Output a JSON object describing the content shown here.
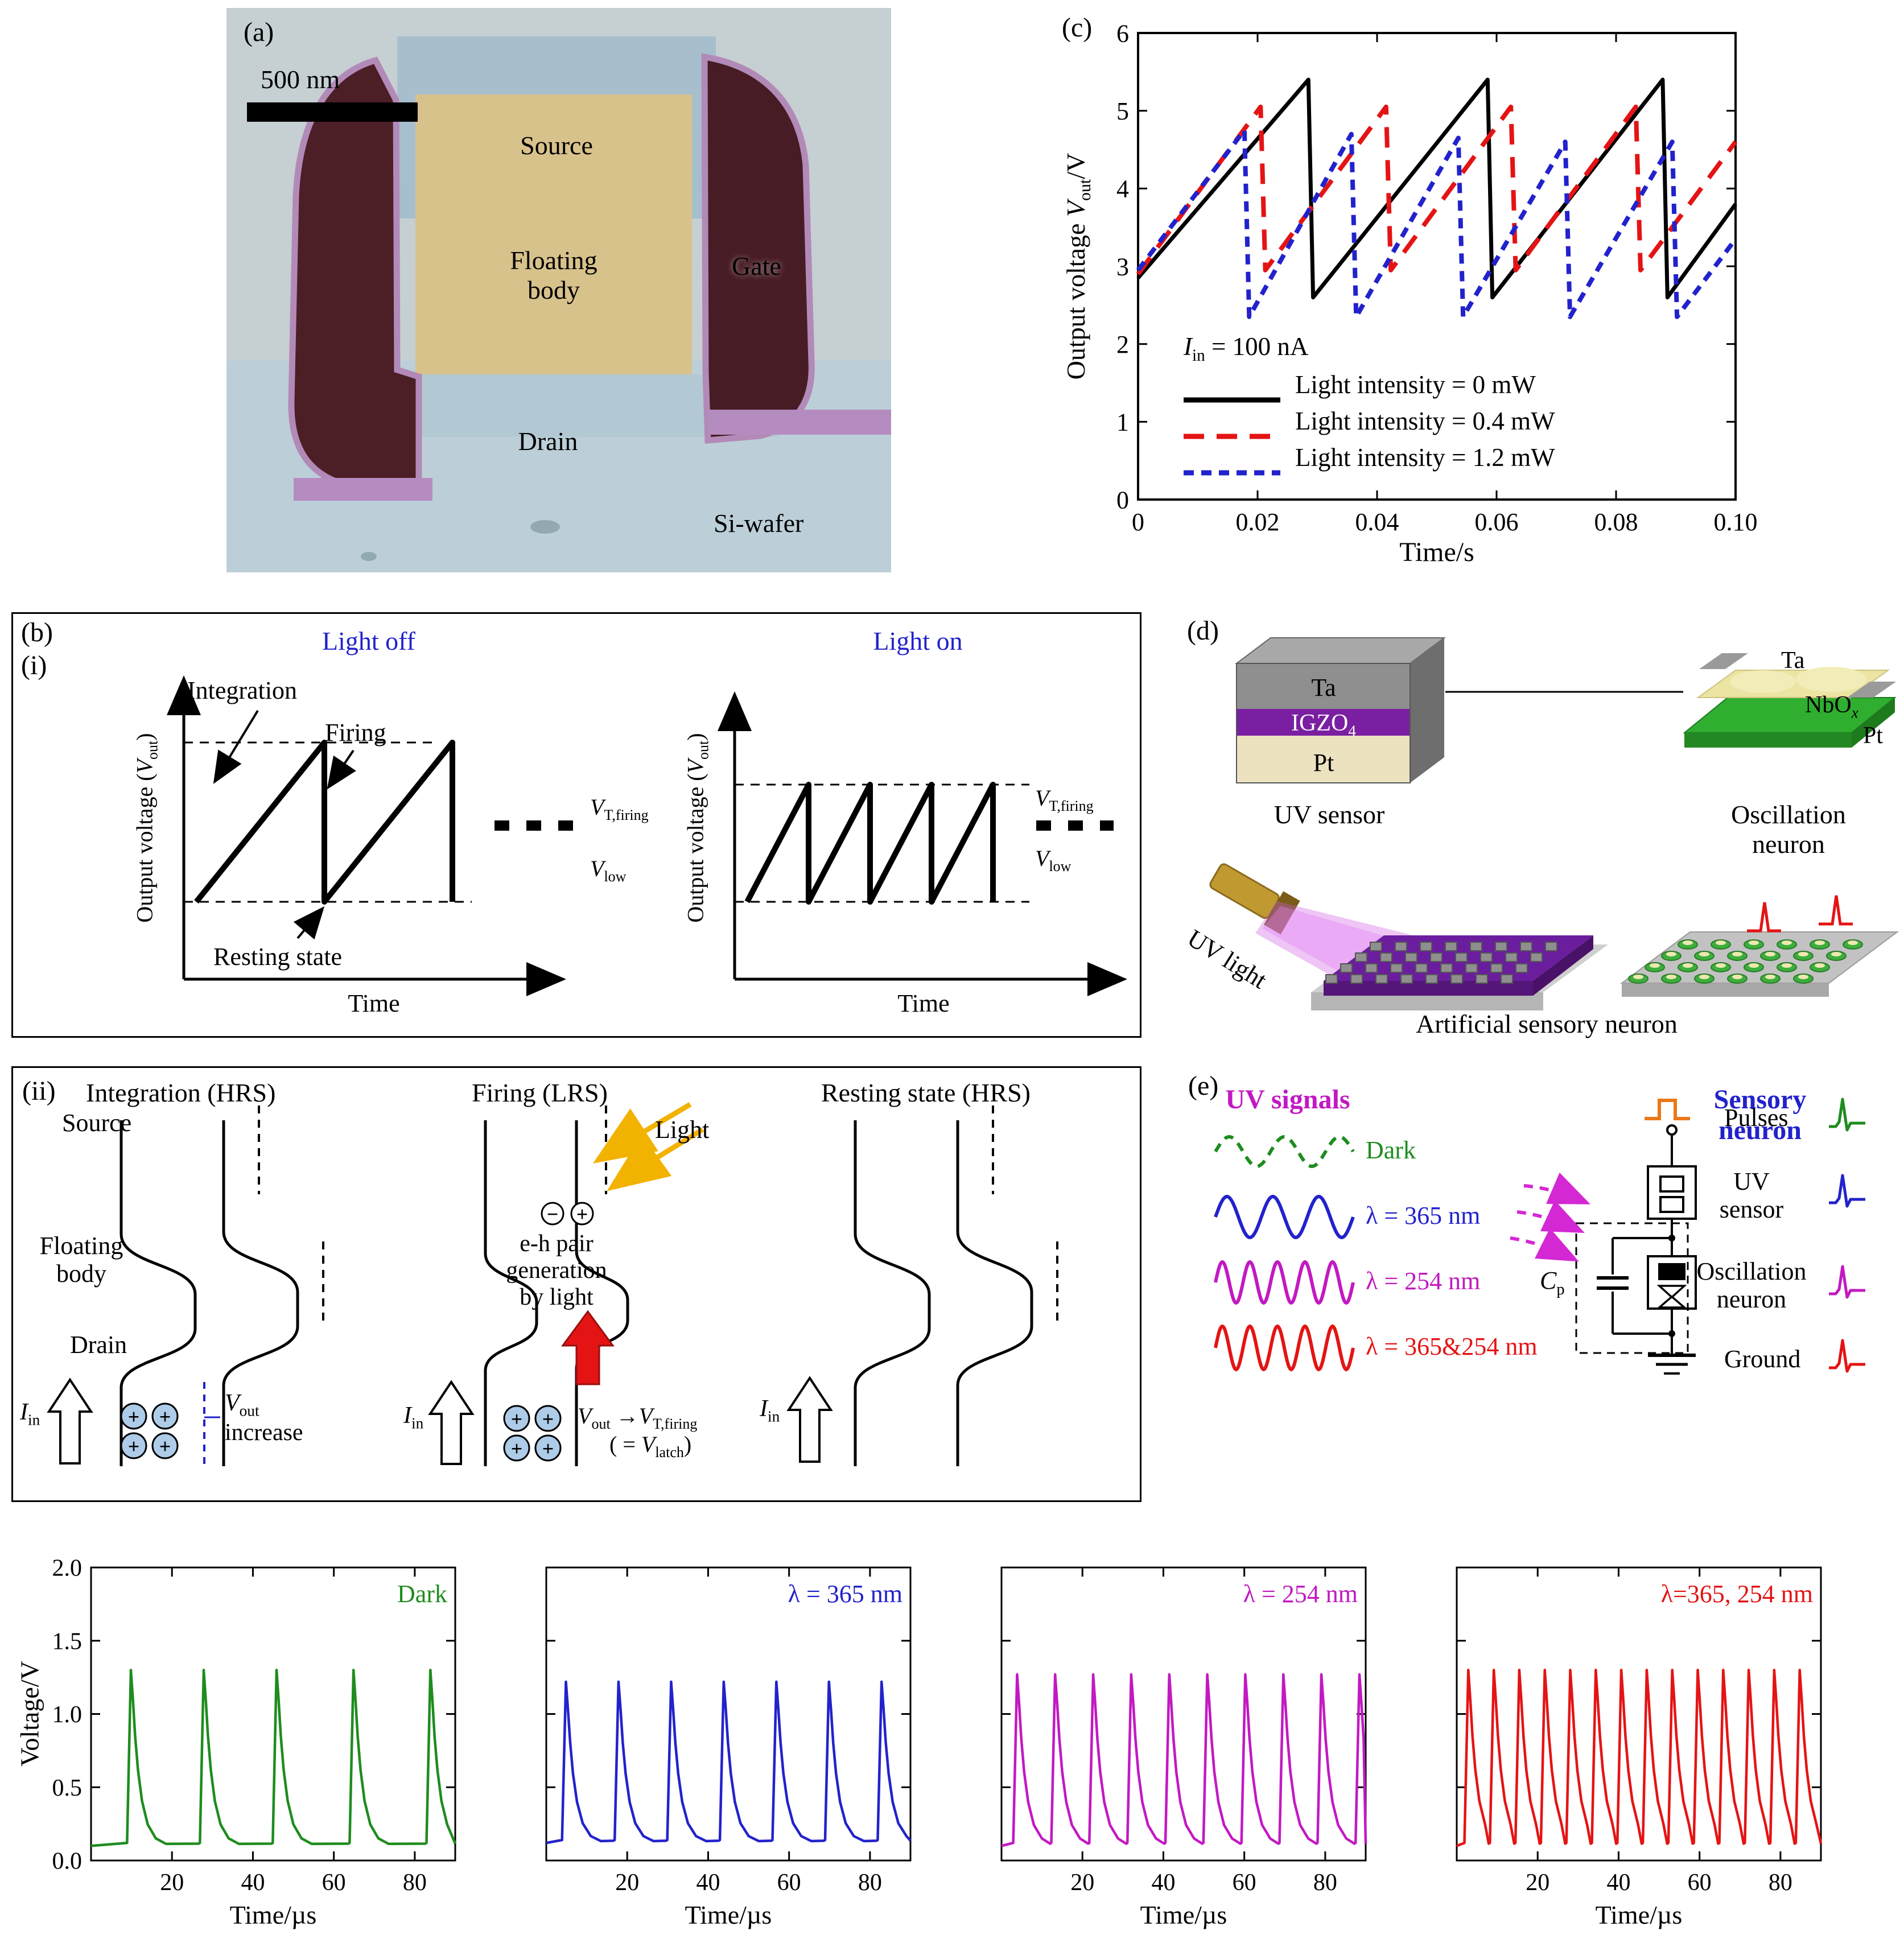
{
  "colors": {
    "black": "#000000",
    "red": "#e41414",
    "blue": "#2222cc",
    "green": "#1e8c1e",
    "magenta": "#c219c2",
    "orange": "#e87818",
    "gate_maroon": "#4c1e26",
    "body_tan": "#d8c28c",
    "igzo_purple": "#7b1fa2",
    "beam_purple": "#cf5ae1"
  },
  "a": {
    "label": "(a)",
    "scale_bar": "500 nm",
    "source": "Source",
    "floating_body": "Floating\nbody",
    "gate": "Gate",
    "drain": "Drain",
    "si_wafer": "Si-wafer"
  },
  "c": {
    "label": "(c)",
    "ylabel_prefix": "Output voltage ",
    "ylabel_suffix": "/V",
    "annotation_suffix": " = 100 nA"
  },
  "b": {
    "label": "(b)",
    "sub": "(i)",
    "left_title": "Light off",
    "right_title": "Light on",
    "ylabel_prefix": "Output voltage (",
    "ylabel_suffix": ")",
    "xlabel": "Time",
    "integration": "Integration",
    "firing": "Firing",
    "resting": "Resting state"
  },
  "ii": {
    "label": "(ii)",
    "t1": "Integration (HRS)",
    "t2": "Firing (LRS)",
    "t3": "Resting state (HRS)",
    "source": "Source",
    "floating_body": "Floating\nbody",
    "drain": "Drain",
    "increase": "increase",
    "light": "Light",
    "eh": "e-h pair\ngeneration\nby light",
    "plus": "+",
    "minus": "−",
    "arrow": "→",
    "latch_open": "( = ",
    "latch_close": ")"
  },
  "d": {
    "label": "(d)",
    "ta": "Ta",
    "igzo_main": "IGZO",
    "igzo_sub": "4",
    "pt": "Pt",
    "uv_sensor": "UV sensor",
    "ta2": "Ta",
    "nbo_main": "NbO",
    "nbo_sub": "x",
    "pt2": "Pt",
    "oscillation_neuron": "Oscillation neuron",
    "uv_light": "UV light",
    "artificial": "Artificial sensory neuron"
  },
  "e": {
    "label": "(e)",
    "uv_signals": "UV signals",
    "sensory": "Sensory neuron",
    "pulses": "Pulses",
    "uv_sensor": "UV\nsensor",
    "osc": "Oscillation\nneuron",
    "ground": "Ground",
    "waves": [
      {
        "label": "Dark",
        "color": "#1e8c1e",
        "dashed": true,
        "cycles": 2.5
      },
      {
        "label": "λ = 365 nm",
        "color": "#2222cc",
        "dashed": false,
        "cycles": 3
      },
      {
        "label": "λ = 254 nm",
        "color": "#c219c2",
        "dashed": false,
        "cycles": 5
      },
      {
        "label": "λ = 365&254 nm",
        "color": "#e41414",
        "dashed": false,
        "cycles": 5
      }
    ]
  },
  "sub_labels": {
    "vout": [
      "V",
      "out"
    ],
    "vt": [
      "V",
      "T,firing"
    ],
    "vlow": [
      "V",
      "low"
    ],
    "iin": [
      "I",
      "in"
    ],
    "cp": [
      "C",
      "p"
    ],
    "vlatch": [
      "V",
      "latch"
    ]
  },
  "chart_data": [
    {
      "id": "c",
      "type": "line",
      "xlabel": "Time/s",
      "ylabel": "Output voltage Vout/V",
      "xlim": [
        0,
        0.1
      ],
      "ylim": [
        0,
        6
      ],
      "xticks": [
        "0",
        "0.02",
        "0.04",
        "0.06",
        "0.08",
        "0.10"
      ],
      "xtick_vals": [
        0,
        0.02,
        0.04,
        0.06,
        0.08,
        0.1
      ],
      "yticks": [
        "0",
        "1",
        "2",
        "3",
        "4",
        "5",
        "6"
      ],
      "ytick_vals": [
        0,
        1,
        2,
        3,
        4,
        5,
        6
      ],
      "annotation": "Iin = 100 nA",
      "legend": [
        {
          "label": "Light intensity = 0 mW",
          "color": "#000000",
          "dash": ""
        },
        {
          "label": "Light intensity = 0.4 mW",
          "color": "#e41414",
          "dash": "36 22"
        },
        {
          "label": "Light intensity = 1.2 mW",
          "color": "#2222cc",
          "dash": "18 13"
        }
      ],
      "series": [
        {
          "name": "0 mW",
          "color": "#000000",
          "dash": "",
          "width": 7,
          "points": [
            [
              0,
              2.85
            ],
            [
              0.0285,
              5.4
            ],
            [
              0.0293,
              2.6
            ],
            [
              0.0585,
              5.4
            ],
            [
              0.0593,
              2.6
            ],
            [
              0.0878,
              5.4
            ],
            [
              0.0886,
              2.6
            ],
            [
              0.1,
              3.8
            ]
          ]
        },
        {
          "name": "0.4 mW",
          "color": "#e41414",
          "dash": "36 22",
          "width": 8,
          "points": [
            [
              0,
              2.9
            ],
            [
              0.0205,
              5.05
            ],
            [
              0.0213,
              2.95
            ],
            [
              0.0415,
              5.05
            ],
            [
              0.0423,
              2.95
            ],
            [
              0.0624,
              5.05
            ],
            [
              0.0632,
              2.95
            ],
            [
              0.0833,
              5.05
            ],
            [
              0.0841,
              2.95
            ],
            [
              0.1,
              4.6
            ]
          ]
        },
        {
          "name": "1.2 mW",
          "color": "#2222cc",
          "dash": "18 13",
          "width": 8,
          "points": [
            [
              0,
              2.95
            ],
            [
              0.0178,
              4.75
            ],
            [
              0.0186,
              2.35
            ],
            [
              0.0357,
              4.7
            ],
            [
              0.0365,
              2.35
            ],
            [
              0.0536,
              4.65
            ],
            [
              0.0544,
              2.35
            ],
            [
              0.0715,
              4.6
            ],
            [
              0.0723,
              2.35
            ],
            [
              0.0894,
              4.6
            ],
            [
              0.0902,
              2.35
            ],
            [
              0.1,
              3.35
            ]
          ]
        }
      ]
    },
    {
      "id": "f1",
      "type": "line",
      "title": "Dark",
      "color": "#1e8c1e",
      "xlabel": "Time/µs",
      "ylabel": "Voltage/V",
      "xlim": [
        0,
        90
      ],
      "ylim": [
        0,
        2
      ],
      "xticks": [
        "20",
        "40",
        "60",
        "80"
      ],
      "xtick_vals": [
        20,
        40,
        60,
        80
      ],
      "yticks": [
        "0.0",
        "0.5",
        "1.0",
        "1.5",
        "2.0"
      ],
      "ytick_vals": [
        0,
        0.5,
        1,
        1.5,
        2
      ],
      "baseline": 0.1,
      "peak": 1.3,
      "spike_times": [
        10,
        28,
        46,
        65,
        84
      ]
    },
    {
      "id": "f2",
      "type": "line",
      "title": "λ = 365 nm",
      "color": "#2222cc",
      "xlabel": "Time/µs",
      "ylabel": "Voltage/V",
      "xlim": [
        0,
        90
      ],
      "ylim": [
        0,
        2
      ],
      "xticks": [
        "20",
        "40",
        "60",
        "80"
      ],
      "xtick_vals": [
        20,
        40,
        60,
        80
      ],
      "yticks": [
        "0.0",
        "0.5",
        "1.0",
        "1.5",
        "2.0"
      ],
      "ytick_vals": [
        0,
        0.5,
        1,
        1.5,
        2
      ],
      "baseline": 0.12,
      "peak": 1.22,
      "spike_times": [
        5,
        18,
        31,
        44,
        57,
        70,
        83
      ]
    },
    {
      "id": "f3",
      "type": "line",
      "title": "λ = 254 nm",
      "color": "#c219c2",
      "xlabel": "Time/µs",
      "ylabel": "Voltage/V",
      "xlim": [
        0,
        90
      ],
      "ylim": [
        0,
        2
      ],
      "xticks": [
        "20",
        "40",
        "60",
        "80"
      ],
      "xtick_vals": [
        20,
        40,
        60,
        80
      ],
      "yticks": [
        "0.0",
        "0.5",
        "1.0",
        "1.5",
        "2.0"
      ],
      "ytick_vals": [
        0,
        0.5,
        1,
        1.5,
        2
      ],
      "baseline": 0.1,
      "peak": 1.27,
      "spike_times": [
        4,
        13.4,
        22.8,
        32.2,
        41.6,
        51,
        60.4,
        69.8,
        79.2,
        88.6
      ]
    },
    {
      "id": "f4",
      "type": "line",
      "title": "λ=365, 254 nm",
      "color": "#e41414",
      "xlabel": "Time/µs",
      "ylabel": "Voltage/V",
      "xlim": [
        0,
        90
      ],
      "ylim": [
        0,
        2
      ],
      "xticks": [
        "20",
        "40",
        "60",
        "80"
      ],
      "xtick_vals": [
        20,
        40,
        60,
        80
      ],
      "yticks": [
        "0.0",
        "0.5",
        "1.0",
        "1.5",
        "2.0"
      ],
      "ytick_vals": [
        0,
        0.5,
        1,
        1.5,
        2
      ],
      "baseline": 0.1,
      "peak": 1.3,
      "spike_times": [
        3,
        9.3,
        15.6,
        21.9,
        28.2,
        34.5,
        40.8,
        47.1,
        53.4,
        59.7,
        66,
        72.3,
        78.6,
        84.9
      ]
    }
  ]
}
